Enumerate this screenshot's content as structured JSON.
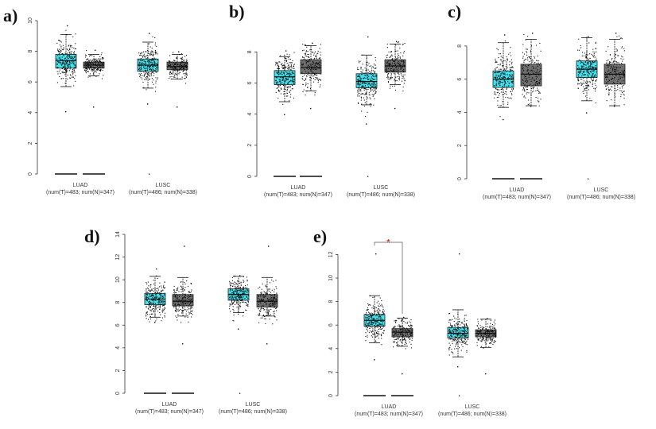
{
  "figure": {
    "colors": {
      "tumor": "#3fe3ef",
      "normal": "#6e6e6e",
      "jitter": "#111111",
      "star": "#e0302a"
    },
    "panels": [
      {
        "label": "a)",
        "chart_data": {
          "type": "box",
          "yticks": [
            "0",
            "2",
            "4",
            "6",
            "8",
            "10"
          ],
          "ylim": [
            0,
            10
          ],
          "groups": [
            {
              "name": "LUAD",
              "subtitle": "(num(T)=483; num(N)=347)",
              "tumor": {
                "q1": 6.9,
                "median": 7.4,
                "q3": 7.8,
                "whisker_low": 5.7,
                "whisker_high": 9.1,
                "points_low": 4.1,
                "points_high": 9.7
              },
              "normal": {
                "q1": 6.9,
                "median": 7.1,
                "q3": 7.3,
                "whisker_low": 6.4,
                "whisker_high": 7.8,
                "points_low": 4.4,
                "points_high": 8.1
              }
            },
            {
              "name": "LUSC",
              "subtitle": "(num(T)=486; num(N)=338)",
              "tumor": {
                "q1": 6.7,
                "median": 7.1,
                "q3": 7.5,
                "whisker_low": 5.6,
                "whisker_high": 8.6,
                "points_low": 4.6,
                "points_high": 9.2
              },
              "normal": {
                "q1": 6.8,
                "median": 7.0,
                "q3": 7.3,
                "whisker_low": 6.2,
                "whisker_high": 7.8,
                "points_low": 4.4,
                "points_high": 8.0
              }
            }
          ],
          "zero_markers": [
            "LUAD-tumor",
            "LUAD-normal"
          ],
          "significance": null
        }
      },
      {
        "label": "b)",
        "chart_data": {
          "type": "box",
          "yticks": [
            "0",
            "2",
            "4",
            "6",
            "8"
          ],
          "ylim": [
            0,
            9.5
          ],
          "groups": [
            {
              "name": "LUAD",
              "subtitle": "(num(T)=483; num(N)=347)",
              "tumor": {
                "q1": 5.9,
                "median": 6.4,
                "q3": 6.8,
                "whisker_low": 4.8,
                "whisker_high": 7.7,
                "points_low": 4.0,
                "points_high": 8.1
              },
              "normal": {
                "q1": 6.6,
                "median": 7.0,
                "q3": 7.5,
                "whisker_low": 5.5,
                "whisker_high": 8.4,
                "points_low": 4.4,
                "points_high": 8.6
              }
            },
            {
              "name": "LUSC",
              "subtitle": "(num(T)=486; num(N)=338)",
              "tumor": {
                "q1": 5.7,
                "median": 6.1,
                "q3": 6.6,
                "whisker_low": 4.6,
                "whisker_high": 7.8,
                "points_low": 3.4,
                "points_high": 9.0
              },
              "normal": {
                "q1": 6.7,
                "median": 7.1,
                "q3": 7.5,
                "whisker_low": 5.9,
                "whisker_high": 8.5,
                "points_low": 4.4,
                "points_high": 8.7
              }
            }
          ],
          "zero_markers": [
            "LUAD-tumor",
            "LUAD-normal",
            "LUSC-normal-dot"
          ],
          "significance": null
        }
      },
      {
        "label": "c)",
        "chart_data": {
          "type": "box",
          "yticks": [
            "0",
            "2",
            "4",
            "6",
            "8"
          ],
          "ylim": [
            0,
            9
          ],
          "groups": [
            {
              "name": "LUAD",
              "subtitle": "(num(T)=483; num(N)=347)",
              "tumor": {
                "q1": 5.5,
                "median": 6.0,
                "q3": 6.5,
                "whisker_low": 4.3,
                "whisker_high": 8.2,
                "points_low": 3.6,
                "points_high": 8.7
              },
              "normal": {
                "q1": 5.6,
                "median": 6.3,
                "q3": 6.9,
                "whisker_low": 4.4,
                "whisker_high": 8.4,
                "points_low": 4.4,
                "points_high": 8.8
              }
            },
            {
              "name": "LUSC",
              "subtitle": "(num(T)=486; num(N)=338)",
              "tumor": {
                "q1": 6.1,
                "median": 6.6,
                "q3": 7.1,
                "whisker_low": 4.7,
                "whisker_high": 8.5,
                "points_low": 4.0,
                "points_high": 8.6
              },
              "normal": {
                "q1": 5.7,
                "median": 6.3,
                "q3": 6.9,
                "whisker_low": 4.4,
                "whisker_high": 8.4,
                "points_low": 4.4,
                "points_high": 8.8
              }
            }
          ],
          "zero_markers": [
            "LUAD-tumor",
            "LUAD-normal",
            "LUSC-normal-dot"
          ],
          "significance": null
        }
      },
      {
        "label": "d)",
        "chart_data": {
          "type": "box",
          "yticks": [
            "0",
            "2",
            "4",
            "6",
            "8",
            "10",
            "12",
            "14"
          ],
          "ylim": [
            0,
            14
          ],
          "groups": [
            {
              "name": "LUAD",
              "subtitle": "(num(T)=483; num(N)=347)",
              "tumor": {
                "q1": 7.8,
                "median": 8.3,
                "q3": 8.8,
                "whisker_low": 6.7,
                "whisker_high": 10.3,
                "points_low": 6.3,
                "points_high": 11.0
              },
              "normal": {
                "q1": 7.7,
                "median": 8.1,
                "q3": 8.7,
                "whisker_low": 6.8,
                "whisker_high": 10.2,
                "points_low": 4.4,
                "points_high": 13.0
              }
            },
            {
              "name": "LUSC",
              "subtitle": "(num(T)=486; num(N)=338)",
              "tumor": {
                "q1": 8.2,
                "median": 8.7,
                "q3": 9.2,
                "whisker_low": 7.1,
                "whisker_high": 10.3,
                "points_low": 5.7,
                "points_high": 10.4
              },
              "normal": {
                "q1": 7.6,
                "median": 8.1,
                "q3": 8.7,
                "whisker_low": 6.8,
                "whisker_high": 10.2,
                "points_low": 4.4,
                "points_high": 13.0
              }
            }
          ],
          "zero_markers": [
            "LUAD-tumor",
            "LUAD-normal",
            "LUSC-normal-dot"
          ],
          "significance": null
        }
      },
      {
        "label": "e)",
        "chart_data": {
          "type": "box",
          "yticks": [
            "0",
            "2",
            "4",
            "6",
            "8",
            "10",
            "12"
          ],
          "ylim": [
            0,
            12.5
          ],
          "groups": [
            {
              "name": "LUAD",
              "subtitle": "(num(T)=483; num(N)=347)",
              "tumor": {
                "q1": 5.9,
                "median": 6.4,
                "q3": 6.9,
                "whisker_low": 4.5,
                "whisker_high": 8.5,
                "points_low": 3.1,
                "points_high": 12.1
              },
              "normal": {
                "q1": 5.0,
                "median": 5.4,
                "q3": 5.7,
                "whisker_low": 4.2,
                "whisker_high": 6.6,
                "points_low": 1.9,
                "points_high": 6.7
              }
            },
            {
              "name": "LUSC",
              "subtitle": "(num(T)=486; num(N)=338)",
              "tumor": {
                "q1": 4.9,
                "median": 5.3,
                "q3": 5.8,
                "whisker_low": 3.3,
                "whisker_high": 7.3,
                "points_low": 2.5,
                "points_high": 12.1
              },
              "normal": {
                "q1": 5.0,
                "median": 5.3,
                "q3": 5.6,
                "whisker_low": 4.1,
                "whisker_high": 6.5,
                "points_low": 1.9,
                "points_high": 6.6
              }
            }
          ],
          "zero_markers": [
            "LUAD-tumor",
            "LUAD-normal",
            "LUSC-normal-dot"
          ],
          "significance": {
            "between": "LUAD",
            "symbol": "*"
          }
        }
      }
    ]
  }
}
